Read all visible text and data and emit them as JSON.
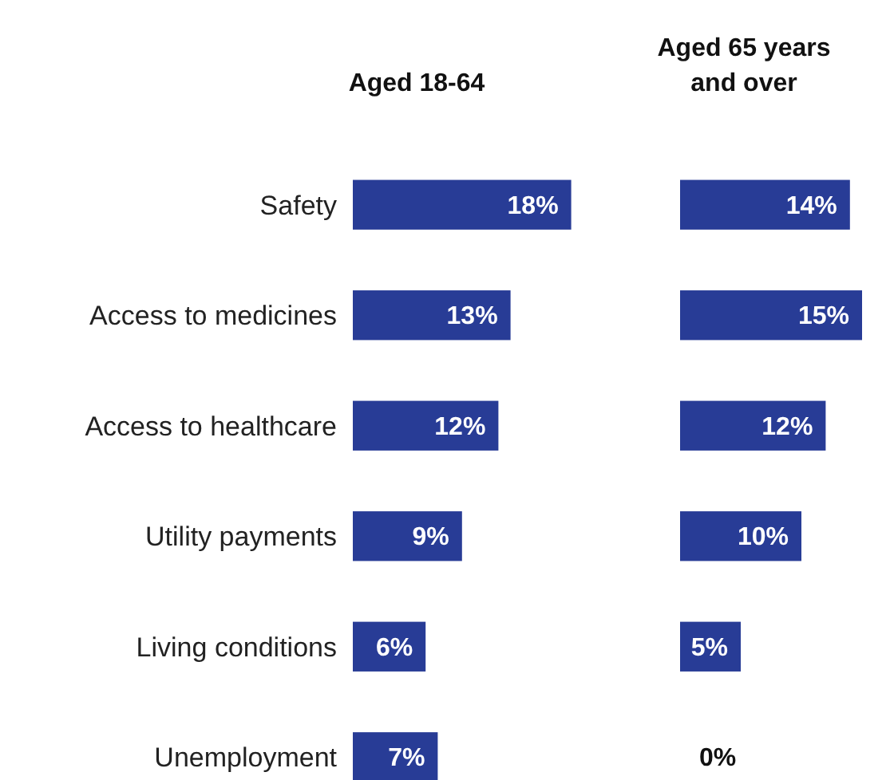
{
  "chart_data": [
    {
      "type": "bar",
      "orientation": "horizontal",
      "title": "Aged 18-64",
      "categories": [
        "Safety",
        "Access to medicines",
        "Access to healthcare",
        "Utility payments",
        "Living conditions",
        "Unemployment"
      ],
      "values": [
        18,
        13,
        12,
        9,
        6,
        7
      ],
      "value_labels": [
        "18%",
        "13%",
        "12%",
        "9%",
        "6%",
        "7%"
      ],
      "color": "#283c96",
      "tick_labels": "y"
    },
    {
      "type": "bar",
      "orientation": "horizontal",
      "title": "Aged 65 years and over",
      "categories": [
        null,
        null,
        null,
        null,
        null,
        null
      ],
      "values": [
        14,
        15,
        12,
        10,
        5,
        0
      ],
      "value_labels": [
        "14%",
        "15%",
        "12%",
        "10%",
        "5%",
        "0%"
      ],
      "color": "#283c96",
      "tick_labels": false
    }
  ]
}
